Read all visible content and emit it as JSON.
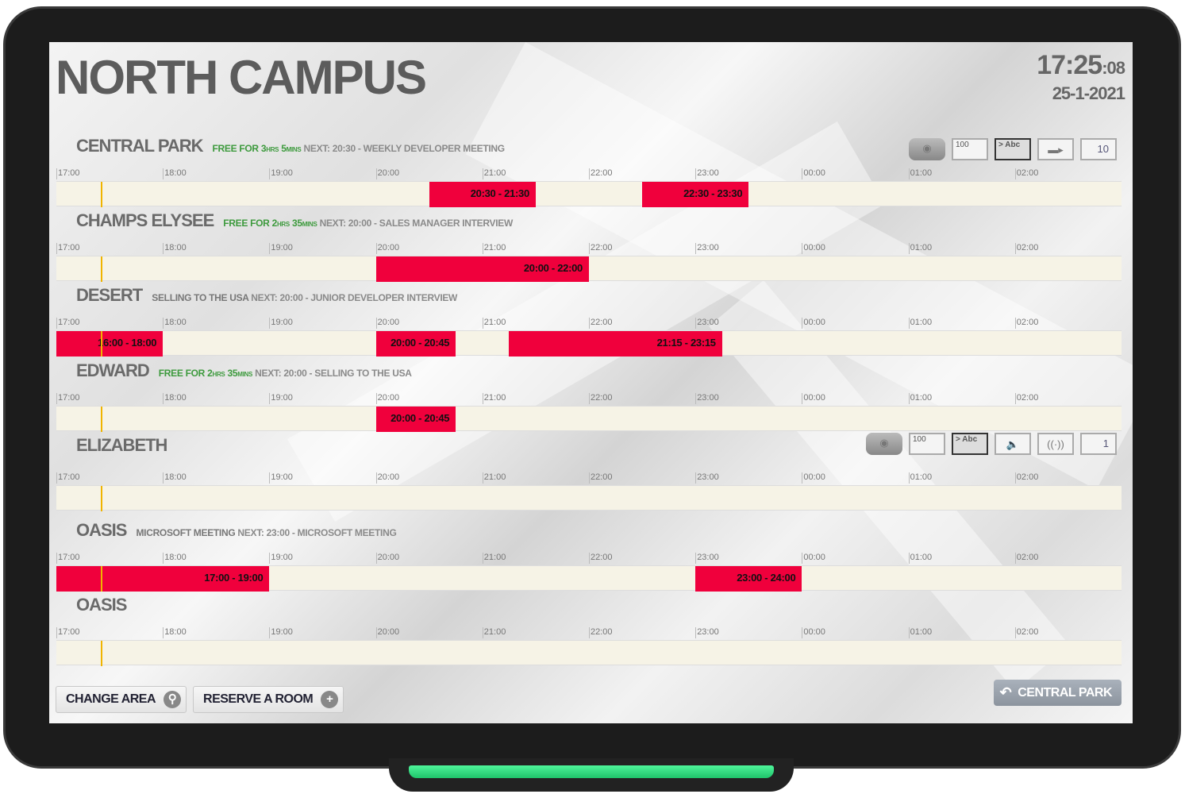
{
  "header": {
    "title": "NORTH CAMPUS",
    "time": "17:25",
    "seconds": ":08",
    "date": "25-1-2021"
  },
  "timeline": {
    "start_hour": 17,
    "hours": [
      "17:00",
      "18:00",
      "19:00",
      "20:00",
      "21:00",
      "22:00",
      "23:00",
      "00:00",
      "01:00",
      "02:00"
    ],
    "now": "17:25"
  },
  "colors": {
    "booked": "#f0003c",
    "free_text": "#3d9a3d",
    "now_line": "#f0b400",
    "free_track": "#f6f3e6"
  },
  "rooms": [
    {
      "name": "CENTRAL PARK",
      "status": {
        "type": "free",
        "prefix": "FREE FOR ",
        "h": "3",
        "hl": "HRS",
        "m": "5",
        "ml": "MINS"
      },
      "next": "NEXT: 20:30 - WEEKLY DEVELOPER MEETING",
      "bookings": [
        {
          "label": "20:30 - 21:30",
          "start": 20.5,
          "end": 21.5
        },
        {
          "label": "22:30 - 23:30",
          "start": 22.5,
          "end": 23.5
        }
      ],
      "amenities": [
        {
          "icon": "projector-icon"
        },
        {
          "icon": "whiteboard-icon",
          "text": "100"
        },
        {
          "icon": "display-icon",
          "text": "> Abc"
        },
        {
          "icon": "video-camera-icon"
        },
        {
          "icon": "capacity-icon",
          "text": "10"
        }
      ]
    },
    {
      "name": "CHAMPS ELYSEE",
      "status": {
        "type": "free",
        "prefix": "FREE FOR ",
        "h": "2",
        "hl": "HRS",
        "m": "35",
        "ml": "MINS"
      },
      "next": "NEXT: 20:00 - SALES MANAGER INTERVIEW",
      "bookings": [
        {
          "label": "20:00 - 22:00",
          "start": 20,
          "end": 22
        }
      ]
    },
    {
      "name": "DESERT",
      "status": {
        "type": "busy",
        "text": "SELLING TO THE USA"
      },
      "next": "NEXT: 20:00 - JUNIOR DEVELOPER INTERVIEW",
      "bookings": [
        {
          "label": "16:00 - 18:00",
          "start": 17,
          "end": 18
        },
        {
          "label": "20:00 - 20:45",
          "start": 20,
          "end": 20.75
        },
        {
          "label": "21:15 - 23:15",
          "start": 21.25,
          "end": 23.25
        }
      ]
    },
    {
      "name": "EDWARD",
      "status": {
        "type": "free",
        "prefix": "FREE FOR ",
        "h": "2",
        "hl": "HRS",
        "m": "35",
        "ml": "MINS"
      },
      "next": "NEXT: 20:00 - SELLING TO THE USA",
      "bookings": [
        {
          "label": "20:00 - 20:45",
          "start": 20,
          "end": 20.75
        }
      ]
    },
    {
      "name": "ELIZABETH",
      "status": null,
      "next": "",
      "bookings": [],
      "amenities": [
        {
          "icon": "projector-icon"
        },
        {
          "icon": "whiteboard-icon",
          "text": "100"
        },
        {
          "icon": "display-icon",
          "text": "> Abc"
        },
        {
          "icon": "speaker-icon"
        },
        {
          "icon": "wifi-icon"
        },
        {
          "icon": "capacity-icon",
          "text": "1"
        }
      ]
    },
    {
      "name": "OASIS",
      "status": {
        "type": "busy",
        "text": "MICROSOFT MEETING"
      },
      "next": "NEXT: 23:00 - MICROSOFT MEETING",
      "bookings": [
        {
          "label": "17:00 - 19:00",
          "start": 17,
          "end": 19
        },
        {
          "label": "23:00 - 24:00",
          "start": 23,
          "end": 24
        }
      ]
    },
    {
      "name": "OASIS",
      "status": null,
      "next": "",
      "bookings": []
    }
  ],
  "footer": {
    "change_area": "CHANGE AREA",
    "reserve": "RESERVE A ROOM",
    "back": "CENTRAL PARK"
  }
}
